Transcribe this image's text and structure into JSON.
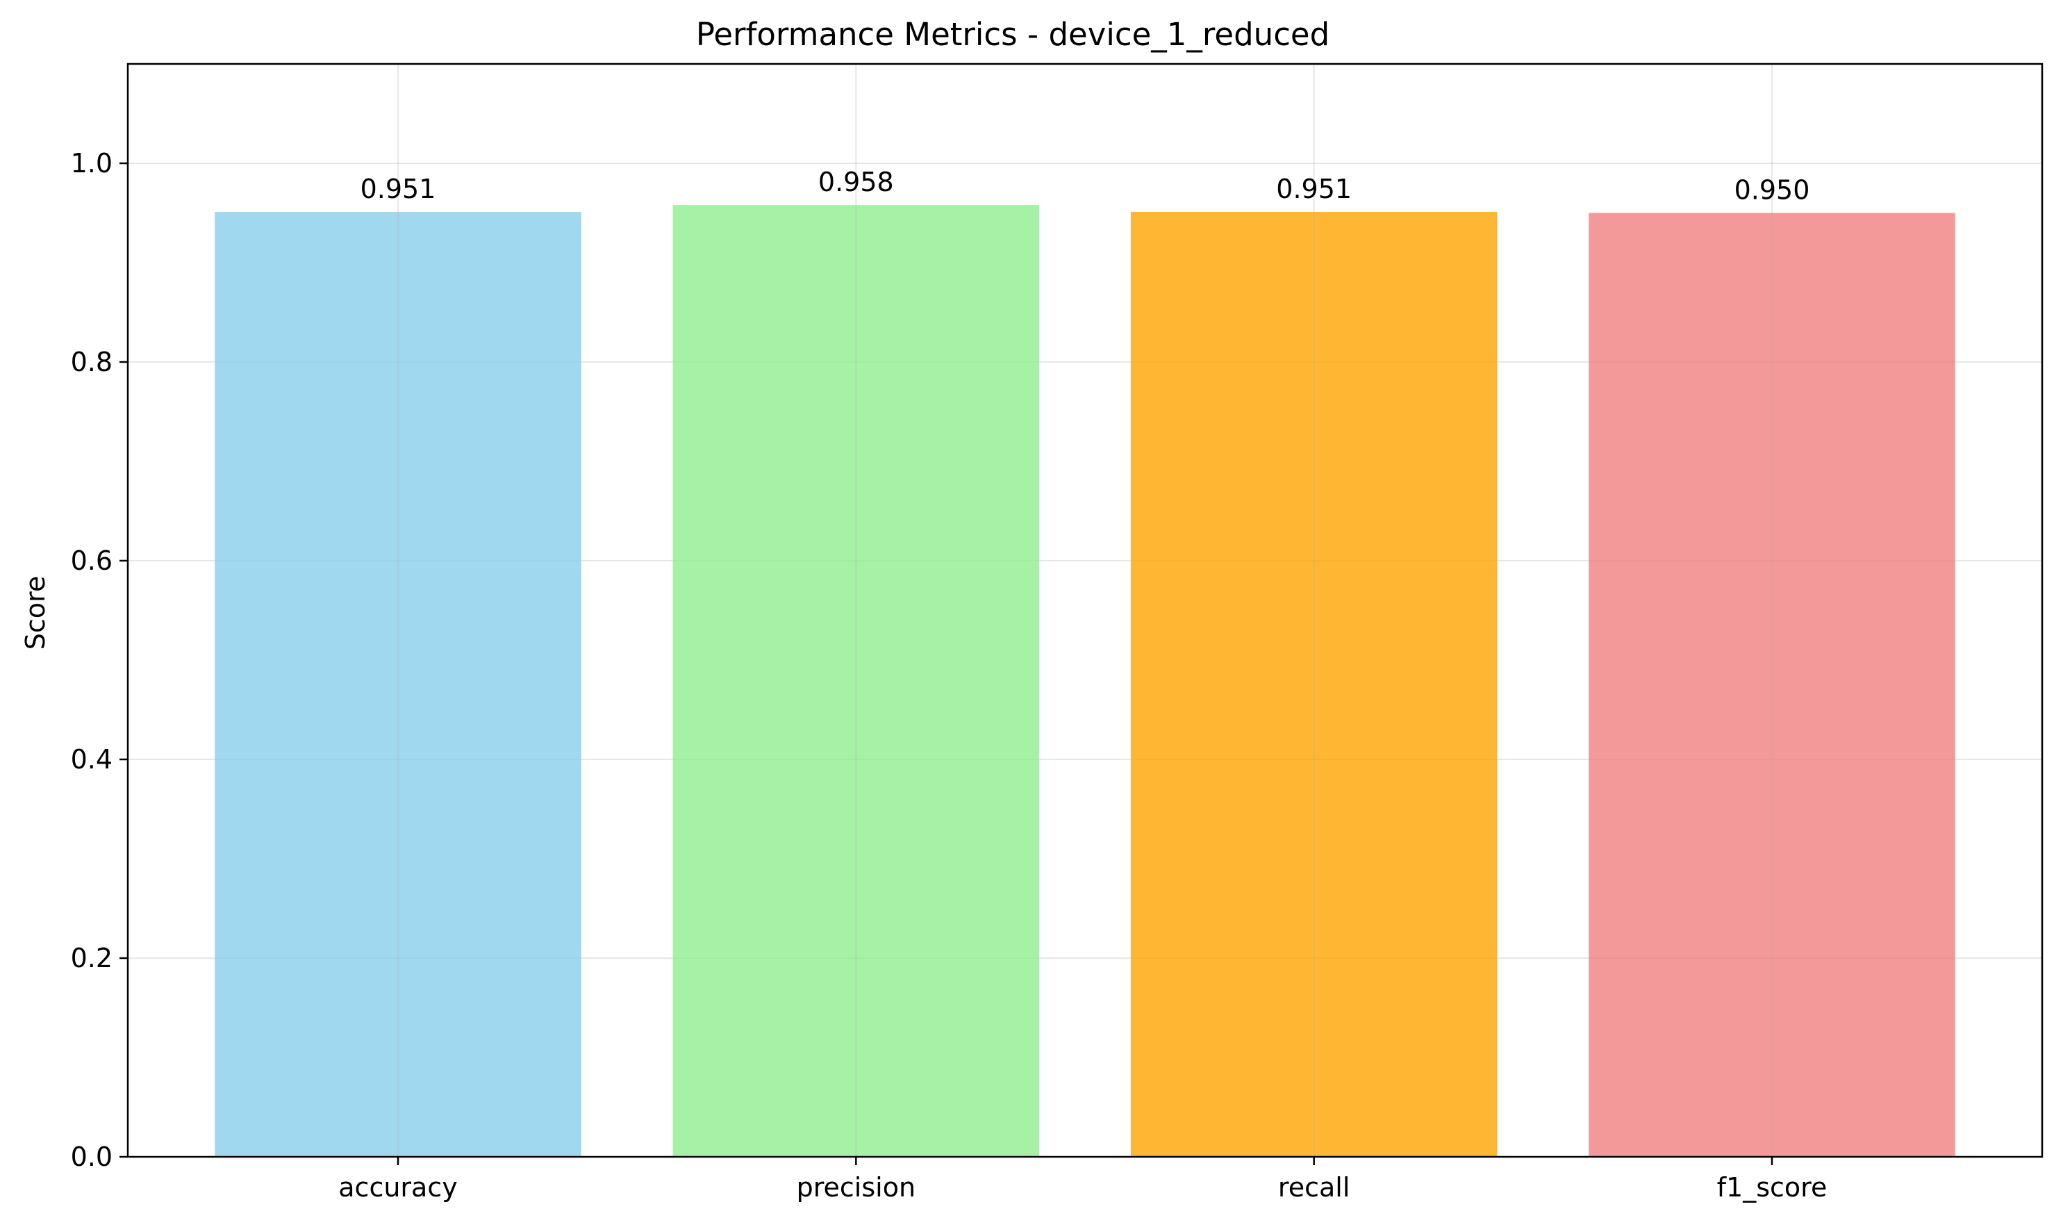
{
  "chart_data": {
    "type": "bar",
    "title": "Performance Metrics - device_1_reduced",
    "xlabel": "",
    "ylabel": "Score",
    "categories": [
      "accuracy",
      "precision",
      "recall",
      "f1_score"
    ],
    "values": [
      0.951,
      0.958,
      0.951,
      0.95
    ],
    "value_labels": [
      "0.951",
      "0.958",
      "0.951",
      "0.950"
    ],
    "colors": [
      "#87CEEB",
      "#90EE90",
      "#FFA500",
      "#F08080"
    ],
    "bar_opacity": 0.8,
    "ylim": [
      0,
      1.1
    ],
    "yticks": [
      0.0,
      0.2,
      0.4,
      0.6,
      0.8,
      1.0
    ],
    "ytick_labels": [
      "0.0",
      "0.2",
      "0.4",
      "0.6",
      "0.8",
      "1.0"
    ],
    "grid": true,
    "legend": "none"
  }
}
